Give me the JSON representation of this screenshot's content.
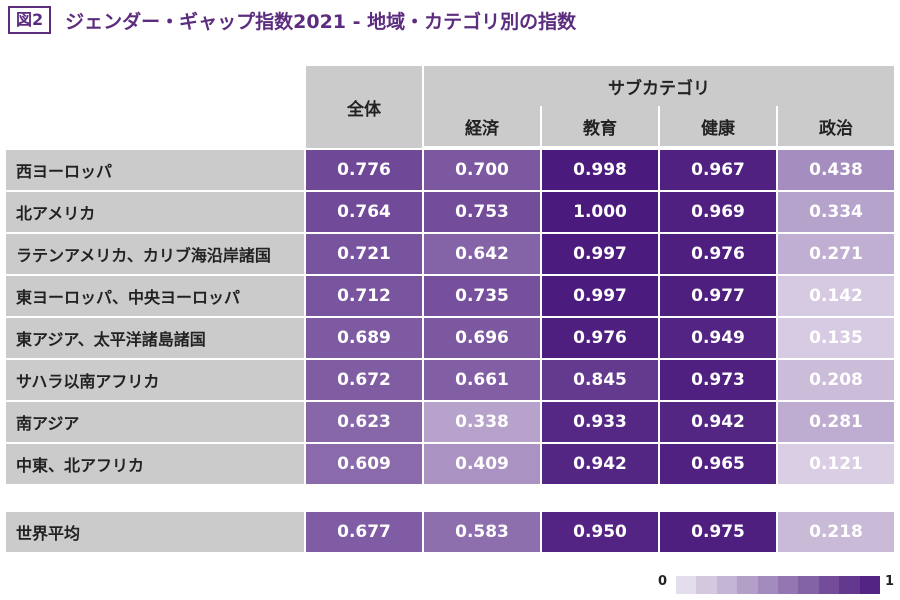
{
  "title": {
    "badge": "図2",
    "text": "ジェンダー・ギャップ指数2021 - 地域・カテゴリ別の指数"
  },
  "chart_data": {
    "type": "heatmap",
    "title": "ジェンダー・ギャップ指数2021 - 地域・カテゴリ別の指数",
    "overall_header": "全体",
    "subcategory_header": "サブカテゴリ",
    "columns": [
      "全体",
      "経済",
      "教育",
      "健康",
      "政治"
    ],
    "rows": [
      {
        "label": "西ヨーロッパ",
        "values": [
          0.776,
          0.7,
          0.998,
          0.967,
          0.438
        ]
      },
      {
        "label": "北アメリカ",
        "values": [
          0.764,
          0.753,
          1.0,
          0.969,
          0.334
        ]
      },
      {
        "label": "ラテンアメリカ、カリブ海沿岸諸国",
        "values": [
          0.721,
          0.642,
          0.997,
          0.976,
          0.271
        ]
      },
      {
        "label": "東ヨーロッパ、中央ヨーロッパ",
        "values": [
          0.712,
          0.735,
          0.997,
          0.977,
          0.142
        ]
      },
      {
        "label": "東アジア、太平洋諸島諸国",
        "values": [
          0.689,
          0.696,
          0.976,
          0.949,
          0.135
        ]
      },
      {
        "label": "サハラ以南アフリカ",
        "values": [
          0.672,
          0.661,
          0.845,
          0.973,
          0.208
        ]
      },
      {
        "label": "南アジア",
        "values": [
          0.623,
          0.338,
          0.933,
          0.942,
          0.281
        ]
      },
      {
        "label": "中東、北アフリカ",
        "values": [
          0.609,
          0.409,
          0.942,
          0.965,
          0.121
        ]
      }
    ],
    "summary_row": {
      "label": "世界平均",
      "values": [
        0.677,
        0.583,
        0.95,
        0.975,
        0.218
      ]
    },
    "legend": {
      "min_label": "0",
      "max_label": "1",
      "steps": 10
    },
    "color_scale": {
      "low": "#ece7f2",
      "high": "#4b1a7d"
    }
  }
}
